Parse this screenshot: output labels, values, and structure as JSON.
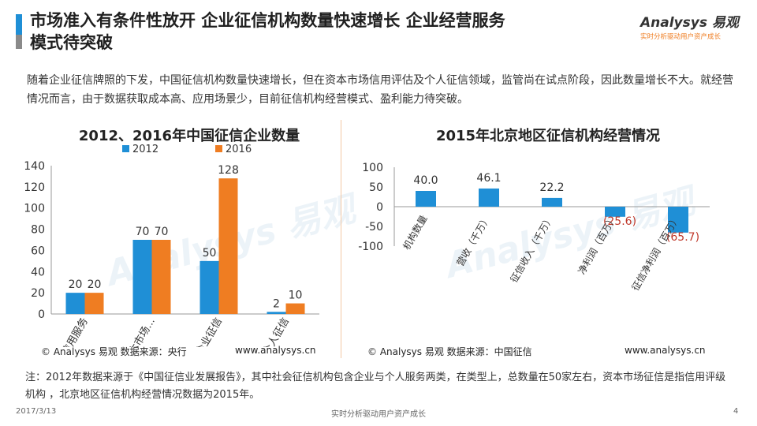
{
  "header": {
    "title": "市场准入有条件性放开 企业征信机构数量快速增长 企业经营服务\n模式待突破",
    "accent_colors": [
      "#1f8fd6",
      "#8a8a8a"
    ],
    "logo": {
      "name": "Analysys 易观",
      "slogan": "实时分析驱动用户资产成长",
      "icon": "analysys-logo-icon"
    }
  },
  "intro": "随着企业征信牌照的下发，中国征信机构数量快速增长，但在资本市场信用评估及个人征信领域，监管尚在试点阶段，因此数量增长不大。就经营情况而言，由于数据获取成本高、应用场景少，目前征信机构经营模式、盈利能力待突破。",
  "colors": {
    "blue": "#1f8fd6",
    "orange": "#ef7d22",
    "red_label": "#c0392b",
    "divider": "#f3c9a6"
  },
  "chart_data": [
    {
      "type": "bar",
      "title": "2012、2016年中国征信企业数量",
      "categories": [
        "信用服务",
        "资本市场...",
        "企业征信",
        "个人征信"
      ],
      "series": [
        {
          "name": "2012",
          "values": [
            20,
            70,
            50,
            2
          ]
        },
        {
          "name": "2016",
          "values": [
            20,
            70,
            128,
            10
          ]
        }
      ],
      "ylim": [
        0,
        140
      ],
      "yticks": [
        0,
        20,
        40,
        60,
        80,
        100,
        120,
        140
      ],
      "legend_position": "top",
      "grid": false
    },
    {
      "type": "bar",
      "title": "2015年北京地区征信机构经营情况",
      "categories": [
        "机构数量",
        "营收（千万）",
        "征信收入（千万）",
        "净利润（百万）",
        "征信净利润（百万）"
      ],
      "values": [
        40.0,
        46.1,
        22.2,
        -25.6,
        -65.7
      ],
      "value_labels": [
        "40.0",
        "46.1",
        "22.2",
        "(25.6)",
        "(65.7)"
      ],
      "ylim": [
        -100,
        100
      ],
      "yticks": [
        -100,
        -50,
        0,
        50,
        100
      ],
      "grid": false
    }
  ],
  "sources": {
    "left": "© Analysys 易观   数据来源：央行",
    "left_url": "www.analysys.cn",
    "right": "© Analysys 易观   数据来源：中国征信",
    "right_url": "www.analysys.cn"
  },
  "note": "注：2012年数据来源于《中国征信业发展报告》，其中社会征信机构包含企业与个人服务两类，在类型上，总数量在50家左右，资本市场征信是指信用评级机构 ，北京地区征信机构经营情况数据为2015年。",
  "footer": {
    "date": "2017/3/13",
    "slogan": "实时分析驱动用户资产成长",
    "page": "4"
  }
}
